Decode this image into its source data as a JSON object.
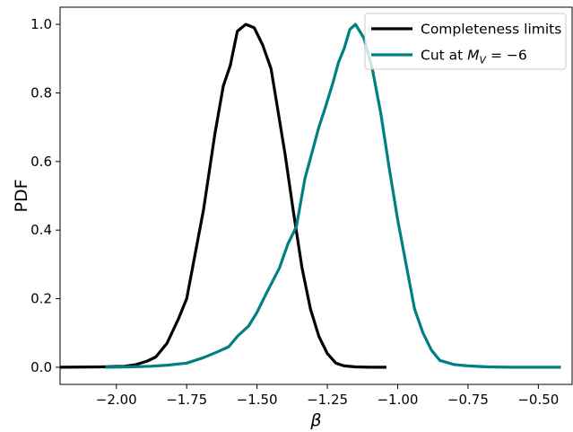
{
  "chart_data": {
    "type": "line",
    "xlabel": "β",
    "ylabel": "PDF",
    "xlim": [
      -2.2,
      -0.38
    ],
    "ylim": [
      -0.05,
      1.05
    ],
    "xticks": [
      {
        "value": -2.0,
        "label": "−2.00"
      },
      {
        "value": -1.75,
        "label": "−1.75"
      },
      {
        "value": -1.5,
        "label": "−1.50"
      },
      {
        "value": -1.25,
        "label": "−1.25"
      },
      {
        "value": -1.0,
        "label": "−1.00"
      },
      {
        "value": -0.75,
        "label": "−0.75"
      },
      {
        "value": -0.5,
        "label": "−0.50"
      }
    ],
    "yticks": [
      {
        "value": 0.0,
        "label": "0.0"
      },
      {
        "value": 0.2,
        "label": "0.2"
      },
      {
        "value": 0.4,
        "label": "0.4"
      },
      {
        "value": 0.6,
        "label": "0.6"
      },
      {
        "value": 0.8,
        "label": "0.8"
      },
      {
        "value": 1.0,
        "label": "1.0"
      }
    ],
    "grid": false,
    "legend": {
      "position": "upper right",
      "entries": [
        {
          "series_index": 0,
          "prefix": "Completeness limits",
          "math": ""
        },
        {
          "series_index": 1,
          "prefix": "Cut at ",
          "math": "M",
          "math_sub": "V",
          "suffix": " = −6"
        }
      ]
    },
    "series": [
      {
        "name": "Completeness limits",
        "color": "#000000",
        "points": [
          [
            -2.2,
            0.0
          ],
          [
            -2.05,
            0.001
          ],
          [
            -1.97,
            0.003
          ],
          [
            -1.93,
            0.008
          ],
          [
            -1.89,
            0.018
          ],
          [
            -1.86,
            0.03
          ],
          [
            -1.82,
            0.07
          ],
          [
            -1.78,
            0.14
          ],
          [
            -1.75,
            0.2
          ],
          [
            -1.72,
            0.33
          ],
          [
            -1.69,
            0.46
          ],
          [
            -1.65,
            0.68
          ],
          [
            -1.62,
            0.82
          ],
          [
            -1.595,
            0.88
          ],
          [
            -1.57,
            0.98
          ],
          [
            -1.54,
            1.0
          ],
          [
            -1.51,
            0.99
          ],
          [
            -1.48,
            0.94
          ],
          [
            -1.45,
            0.87
          ],
          [
            -1.43,
            0.77
          ],
          [
            -1.4,
            0.62
          ],
          [
            -1.37,
            0.45
          ],
          [
            -1.34,
            0.29
          ],
          [
            -1.31,
            0.17
          ],
          [
            -1.28,
            0.09
          ],
          [
            -1.25,
            0.04
          ],
          [
            -1.22,
            0.012
          ],
          [
            -1.19,
            0.004
          ],
          [
            -1.15,
            0.001
          ],
          [
            -1.1,
            0.0
          ],
          [
            -1.04,
            0.0
          ]
        ]
      },
      {
        "name": "Cut at M_V = −6",
        "color": "#008080",
        "points": [
          [
            -2.04,
            0.0
          ],
          [
            -1.95,
            0.001
          ],
          [
            -1.88,
            0.003
          ],
          [
            -1.82,
            0.006
          ],
          [
            -1.75,
            0.012
          ],
          [
            -1.69,
            0.028
          ],
          [
            -1.64,
            0.045
          ],
          [
            -1.6,
            0.06
          ],
          [
            -1.57,
            0.09
          ],
          [
            -1.53,
            0.12
          ],
          [
            -1.5,
            0.16
          ],
          [
            -1.47,
            0.21
          ],
          [
            -1.42,
            0.29
          ],
          [
            -1.39,
            0.36
          ],
          [
            -1.36,
            0.41
          ],
          [
            -1.33,
            0.55
          ],
          [
            -1.3,
            0.64
          ],
          [
            -1.28,
            0.7
          ],
          [
            -1.26,
            0.75
          ],
          [
            -1.23,
            0.83
          ],
          [
            -1.21,
            0.89
          ],
          [
            -1.19,
            0.93
          ],
          [
            -1.17,
            0.985
          ],
          [
            -1.15,
            1.0
          ],
          [
            -1.12,
            0.96
          ],
          [
            -1.09,
            0.87
          ],
          [
            -1.06,
            0.74
          ],
          [
            -1.03,
            0.58
          ],
          [
            -1.0,
            0.43
          ],
          [
            -0.97,
            0.3
          ],
          [
            -0.94,
            0.17
          ],
          [
            -0.91,
            0.1
          ],
          [
            -0.88,
            0.05
          ],
          [
            -0.85,
            0.02
          ],
          [
            -0.8,
            0.008
          ],
          [
            -0.75,
            0.004
          ],
          [
            -0.68,
            0.001
          ],
          [
            -0.6,
            0.0
          ],
          [
            -0.5,
            0.0
          ],
          [
            -0.42,
            0.0
          ]
        ]
      }
    ]
  }
}
